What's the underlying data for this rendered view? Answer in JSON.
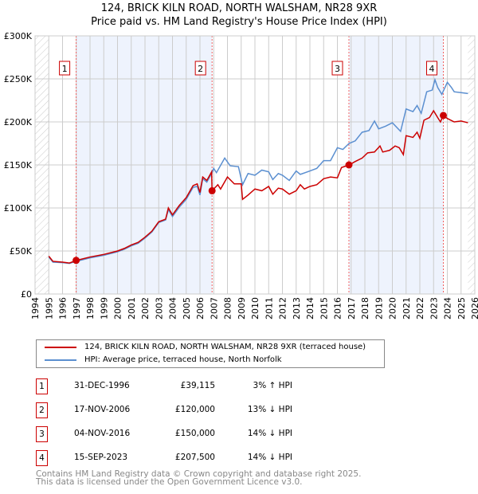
{
  "chart_data": {
    "type": "line",
    "title": "124, BRICK KILN ROAD, NORTH WALSHAM, NR28 9XR",
    "subtitle": "Price paid vs. HM Land Registry's House Price Index (HPI)",
    "xlim": [
      1994,
      2026
    ],
    "ylim": [
      0,
      300000
    ],
    "x_ticks": [
      "1994",
      "1995",
      "1996",
      "1997",
      "1998",
      "1999",
      "2000",
      "2001",
      "2002",
      "2003",
      "2004",
      "2005",
      "2006",
      "2007",
      "2008",
      "2009",
      "2010",
      "2011",
      "2012",
      "2013",
      "2014",
      "2015",
      "2016",
      "2017",
      "2018",
      "2019",
      "2020",
      "2021",
      "2022",
      "2023",
      "2024",
      "2025",
      "2026"
    ],
    "y_ticks": [
      {
        "v": 0,
        "label": "£0"
      },
      {
        "v": 50000,
        "label": "£50K"
      },
      {
        "v": 100000,
        "label": "£100K"
      },
      {
        "v": 150000,
        "label": "£150K"
      },
      {
        "v": 200000,
        "label": "£200K"
      },
      {
        "v": 250000,
        "label": "£250K"
      },
      {
        "v": 300000,
        "label": "£300K"
      }
    ],
    "grid": true,
    "data_range": [
      1995,
      2025.5
    ],
    "series": [
      {
        "name": "124, BRICK KILN ROAD, NORTH WALSHAM, NR28 9XR (terraced house)",
        "color": "#cc0000",
        "points": [
          [
            1995,
            44
          ],
          [
            1995.3,
            38
          ],
          [
            1996,
            37
          ],
          [
            1996.5,
            36
          ],
          [
            1997,
            39
          ],
          [
            1998,
            43
          ],
          [
            1999,
            46
          ],
          [
            2000,
            50
          ],
          [
            2000.5,
            53
          ],
          [
            2001,
            57
          ],
          [
            2001.5,
            60
          ],
          [
            2002,
            66
          ],
          [
            2002.5,
            73
          ],
          [
            2003,
            84
          ],
          [
            2003.5,
            87
          ],
          [
            2003.7,
            100
          ],
          [
            2004,
            92
          ],
          [
            2004.5,
            103
          ],
          [
            2005,
            112
          ],
          [
            2005.5,
            126
          ],
          [
            2005.8,
            128
          ],
          [
            2006,
            118
          ],
          [
            2006.2,
            136
          ],
          [
            2006.5,
            132
          ],
          [
            2006.85,
            142
          ],
          [
            2006.88,
            120
          ],
          [
            2007,
            122
          ],
          [
            2007.3,
            127
          ],
          [
            2007.5,
            122
          ],
          [
            2008,
            136
          ],
          [
            2008.5,
            128
          ],
          [
            2009,
            128
          ],
          [
            2009.1,
            110
          ],
          [
            2009.5,
            115
          ],
          [
            2010,
            122
          ],
          [
            2010.5,
            120
          ],
          [
            2011,
            125
          ],
          [
            2011.3,
            116
          ],
          [
            2011.7,
            123
          ],
          [
            2012,
            122
          ],
          [
            2012.5,
            116
          ],
          [
            2013,
            120
          ],
          [
            2013.3,
            127
          ],
          [
            2013.6,
            122
          ],
          [
            2014,
            125
          ],
          [
            2014.5,
            127
          ],
          [
            2015,
            134
          ],
          [
            2015.5,
            136
          ],
          [
            2016,
            135
          ],
          [
            2016.3,
            147
          ],
          [
            2016.85,
            150
          ],
          [
            2017.3,
            154
          ],
          [
            2017.8,
            158
          ],
          [
            2018.2,
            164
          ],
          [
            2018.7,
            165
          ],
          [
            2019.1,
            172
          ],
          [
            2019.3,
            165
          ],
          [
            2019.8,
            167
          ],
          [
            2020.2,
            172
          ],
          [
            2020.5,
            170
          ],
          [
            2020.8,
            162
          ],
          [
            2021,
            184
          ],
          [
            2021.5,
            182
          ],
          [
            2021.8,
            188
          ],
          [
            2022,
            181
          ],
          [
            2022.3,
            202
          ],
          [
            2022.7,
            205
          ],
          [
            2023,
            213
          ],
          [
            2023.3,
            205
          ],
          [
            2023.5,
            200
          ],
          [
            2023.7,
            207.5
          ],
          [
            2024,
            204
          ],
          [
            2024.5,
            200
          ],
          [
            2025,
            201
          ],
          [
            2025.5,
            199
          ]
        ]
      },
      {
        "name": "HPI: Average price, terraced house, North Norfolk",
        "color": "#5b8fd0",
        "points": [
          [
            1995,
            43
          ],
          [
            1995.3,
            37
          ],
          [
            1996,
            36.5
          ],
          [
            1996.5,
            35.5
          ],
          [
            1997,
            38
          ],
          [
            1998,
            42
          ],
          [
            1999,
            45
          ],
          [
            2000,
            49
          ],
          [
            2000.5,
            52
          ],
          [
            2001,
            56
          ],
          [
            2001.5,
            59
          ],
          [
            2002,
            65
          ],
          [
            2002.5,
            72
          ],
          [
            2003,
            83
          ],
          [
            2003.5,
            86
          ],
          [
            2003.7,
            98
          ],
          [
            2004,
            90
          ],
          [
            2004.5,
            101
          ],
          [
            2005,
            110
          ],
          [
            2005.5,
            124
          ],
          [
            2005.8,
            125
          ],
          [
            2006,
            115
          ],
          [
            2006.2,
            134
          ],
          [
            2006.5,
            130
          ],
          [
            2006.85,
            140
          ],
          [
            2007,
            146
          ],
          [
            2007.2,
            141
          ],
          [
            2007.8,
            158
          ],
          [
            2008.2,
            149
          ],
          [
            2008.8,
            148
          ],
          [
            2009.1,
            127
          ],
          [
            2009.5,
            140
          ],
          [
            2010,
            138
          ],
          [
            2010.5,
            144
          ],
          [
            2011,
            142
          ],
          [
            2011.3,
            133
          ],
          [
            2011.7,
            140
          ],
          [
            2012,
            138
          ],
          [
            2012.5,
            132
          ],
          [
            2013,
            143
          ],
          [
            2013.3,
            139
          ],
          [
            2014,
            143
          ],
          [
            2014.5,
            146
          ],
          [
            2015,
            155
          ],
          [
            2015.5,
            155
          ],
          [
            2016,
            170
          ],
          [
            2016.4,
            168
          ],
          [
            2016.85,
            175
          ],
          [
            2017.3,
            178
          ],
          [
            2017.8,
            188
          ],
          [
            2018.3,
            190
          ],
          [
            2018.7,
            201
          ],
          [
            2019,
            192
          ],
          [
            2019.5,
            195
          ],
          [
            2020,
            199
          ],
          [
            2020.6,
            189
          ],
          [
            2021,
            215
          ],
          [
            2021.5,
            212
          ],
          [
            2021.8,
            219
          ],
          [
            2022.1,
            210
          ],
          [
            2022.5,
            235
          ],
          [
            2022.9,
            237
          ],
          [
            2023.1,
            249
          ],
          [
            2023.3,
            240
          ],
          [
            2023.6,
            232
          ],
          [
            2024,
            246
          ],
          [
            2024.3,
            240
          ],
          [
            2024.5,
            235
          ],
          [
            2025,
            234
          ],
          [
            2025.5,
            233
          ]
        ]
      }
    ],
    "y_unit": "thousands GBP",
    "sales": [
      {
        "label": "1",
        "x": 1996.99,
        "value": 39115,
        "date": "31-DEC-1996",
        "price": "£39,115",
        "hpi": "3% ↑ HPI"
      },
      {
        "label": "2",
        "x": 2006.88,
        "value": 120000,
        "date": "17-NOV-2006",
        "price": "£120,000",
        "hpi": "13% ↓ HPI"
      },
      {
        "label": "3",
        "x": 2016.84,
        "value": 150000,
        "date": "04-NOV-2016",
        "price": "£150,000",
        "hpi": "14% ↓ HPI"
      },
      {
        "label": "4",
        "x": 2023.71,
        "value": 207500,
        "date": "15-SEP-2023",
        "price": "£207,500",
        "hpi": "14% ↓ HPI"
      }
    ],
    "shaded_periods": [
      [
        1996.99,
        2006.88
      ],
      [
        2016.84,
        2023.71
      ]
    ],
    "colors": {
      "band": "#eef3fd",
      "grid": "#cccccc",
      "marker": "#cc0000"
    }
  },
  "footer": {
    "line1": "Contains HM Land Registry data © Crown copyright and database right 2025.",
    "line2": "This data is licensed under the Open Government Licence v3.0."
  }
}
